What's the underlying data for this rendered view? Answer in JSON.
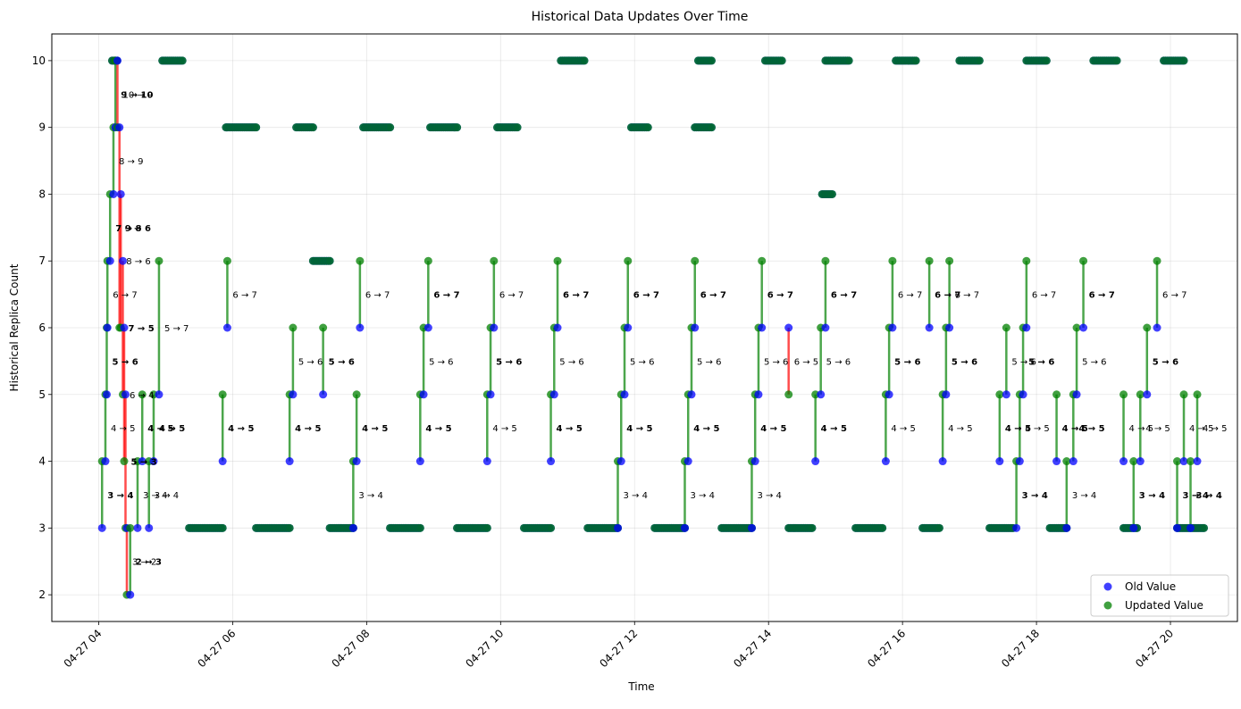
{
  "chart_data": {
    "type": "scatter",
    "title": "Historical Data Updates Over Time",
    "xlabel": "Time",
    "ylabel": "Historical Replica Count",
    "x_unit": "hours (clock time on 04-27)",
    "xlim": [
      3.3,
      21.0
    ],
    "ylim": [
      1.6,
      10.4
    ],
    "x_ticks": [
      {
        "value": 4,
        "label": "04-27 04"
      },
      {
        "value": 6,
        "label": "04-27 06"
      },
      {
        "value": 8,
        "label": "04-27 08"
      },
      {
        "value": 10,
        "label": "04-27 10"
      },
      {
        "value": 12,
        "label": "04-27 12"
      },
      {
        "value": 14,
        "label": "04-27 14"
      },
      {
        "value": 16,
        "label": "04-27 16"
      },
      {
        "value": 18,
        "label": "04-27 18"
      },
      {
        "value": 20,
        "label": "04-27 20"
      }
    ],
    "y_ticks": [
      {
        "value": 2,
        "label": "2"
      },
      {
        "value": 3,
        "label": "3"
      },
      {
        "value": 4,
        "label": "4"
      },
      {
        "value": 5,
        "label": "5"
      },
      {
        "value": 6,
        "label": "6"
      },
      {
        "value": 7,
        "label": "7"
      },
      {
        "value": 8,
        "label": "8"
      },
      {
        "value": 9,
        "label": "9"
      },
      {
        "value": 10,
        "label": "10"
      }
    ],
    "grid": true,
    "legend": {
      "placement": "lower-right",
      "entries": [
        {
          "label": "Old Value",
          "color": "#0000ff"
        },
        {
          "label": "Updated Value",
          "color": "#008000"
        }
      ]
    },
    "colors": {
      "old": "#0000ff",
      "new": "#008000",
      "decrease_line": "#ff0000",
      "increase_line": "#008000"
    },
    "updates": [
      {
        "t": 4.05,
        "from": 3,
        "to": 4,
        "label": "3 → 4"
      },
      {
        "t": 4.1,
        "from": 4,
        "to": 5,
        "label": "4 → 5"
      },
      {
        "t": 4.12,
        "from": 5,
        "to": 6,
        "label": "5 → 6"
      },
      {
        "t": 4.13,
        "from": 6,
        "to": 7,
        "label": "6 → 7"
      },
      {
        "t": 4.17,
        "from": 7,
        "to": 8,
        "label": "7 → 8"
      },
      {
        "t": 4.22,
        "from": 8,
        "to": 9,
        "label": "8 → 9"
      },
      {
        "t": 4.25,
        "from": 9,
        "to": 10,
        "label": "9 → 10"
      },
      {
        "t": 4.28,
        "from": 10,
        "to": 9,
        "label": "10 → 9"
      },
      {
        "t": 4.31,
        "from": 9,
        "to": 6,
        "label": "9 → 6"
      },
      {
        "t": 4.33,
        "from": 8,
        "to": 6,
        "label": "8 → 6"
      },
      {
        "t": 4.36,
        "from": 7,
        "to": 5,
        "label": "7 → 5"
      },
      {
        "t": 4.38,
        "from": 6,
        "to": 4,
        "label": "6 → 4"
      },
      {
        "t": 4.4,
        "from": 5,
        "to": 3,
        "label": "5 → 3"
      },
      {
        "t": 4.42,
        "from": 3,
        "to": 2,
        "label": "3 → 2"
      },
      {
        "t": 4.47,
        "from": 2,
        "to": 3,
        "label": "2 → 3"
      },
      {
        "t": 4.58,
        "from": 3,
        "to": 4,
        "label": "3 → 4"
      },
      {
        "t": 4.65,
        "from": 4,
        "to": 5,
        "label": "4 → 5"
      },
      {
        "t": 4.75,
        "from": 3,
        "to": 4,
        "label": "3 → 4"
      },
      {
        "t": 4.82,
        "from": 4,
        "to": 5,
        "label": "4 → 5"
      },
      {
        "t": 4.9,
        "from": 5,
        "to": 7,
        "label": "5 → 7"
      },
      {
        "t": 5.85,
        "from": 4,
        "to": 5,
        "label": "4 → 5"
      },
      {
        "t": 5.92,
        "from": 6,
        "to": 7,
        "label": "6 → 7"
      },
      {
        "t": 6.85,
        "from": 4,
        "to": 5,
        "label": "4 → 5"
      },
      {
        "t": 6.9,
        "from": 5,
        "to": 6,
        "label": "5 → 6"
      },
      {
        "t": 7.35,
        "from": 5,
        "to": 6,
        "label": "5 → 6"
      },
      {
        "t": 7.8,
        "from": 3,
        "to": 4,
        "label": "3 → 4"
      },
      {
        "t": 7.85,
        "from": 4,
        "to": 5,
        "label": "4 → 5"
      },
      {
        "t": 7.9,
        "from": 6,
        "to": 7,
        "label": "6 → 7"
      },
      {
        "t": 8.8,
        "from": 4,
        "to": 5,
        "label": "4 → 5"
      },
      {
        "t": 8.85,
        "from": 5,
        "to": 6,
        "label": "5 → 6"
      },
      {
        "t": 8.92,
        "from": 6,
        "to": 7,
        "label": "6 → 7"
      },
      {
        "t": 9.8,
        "from": 4,
        "to": 5,
        "label": "4 → 5"
      },
      {
        "t": 9.85,
        "from": 5,
        "to": 6,
        "label": "5 → 6"
      },
      {
        "t": 9.9,
        "from": 6,
        "to": 7,
        "label": "6 → 7"
      },
      {
        "t": 10.75,
        "from": 4,
        "to": 5,
        "label": "4 → 5"
      },
      {
        "t": 10.8,
        "from": 5,
        "to": 6,
        "label": "5 → 6"
      },
      {
        "t": 10.85,
        "from": 6,
        "to": 7,
        "label": "6 → 7"
      },
      {
        "t": 11.75,
        "from": 3,
        "to": 4,
        "label": "3 → 4"
      },
      {
        "t": 11.8,
        "from": 4,
        "to": 5,
        "label": "4 → 5"
      },
      {
        "t": 11.85,
        "from": 5,
        "to": 6,
        "label": "5 → 6"
      },
      {
        "t": 11.9,
        "from": 6,
        "to": 7,
        "label": "6 → 7"
      },
      {
        "t": 12.75,
        "from": 3,
        "to": 4,
        "label": "3 → 4"
      },
      {
        "t": 12.8,
        "from": 4,
        "to": 5,
        "label": "4 → 5"
      },
      {
        "t": 12.85,
        "from": 5,
        "to": 6,
        "label": "5 → 6"
      },
      {
        "t": 12.9,
        "from": 6,
        "to": 7,
        "label": "6 → 7"
      },
      {
        "t": 13.75,
        "from": 3,
        "to": 4,
        "label": "3 → 4"
      },
      {
        "t": 13.8,
        "from": 4,
        "to": 5,
        "label": "4 → 5"
      },
      {
        "t": 13.85,
        "from": 5,
        "to": 6,
        "label": "5 → 6"
      },
      {
        "t": 13.9,
        "from": 6,
        "to": 7,
        "label": "6 → 7"
      },
      {
        "t": 14.3,
        "from": 6,
        "to": 5,
        "label": "6 → 5"
      },
      {
        "t": 14.7,
        "from": 4,
        "to": 5,
        "label": "4 → 5"
      },
      {
        "t": 14.78,
        "from": 5,
        "to": 6,
        "label": "5 → 6"
      },
      {
        "t": 14.85,
        "from": 6,
        "to": 7,
        "label": "6 → 7"
      },
      {
        "t": 15.75,
        "from": 4,
        "to": 5,
        "label": "4 → 5"
      },
      {
        "t": 15.8,
        "from": 5,
        "to": 6,
        "label": "5 → 6"
      },
      {
        "t": 15.85,
        "from": 6,
        "to": 7,
        "label": "6 → 7"
      },
      {
        "t": 16.4,
        "from": 6,
        "to": 7,
        "label": "6 → 7"
      },
      {
        "t": 16.6,
        "from": 4,
        "to": 5,
        "label": "4 → 5"
      },
      {
        "t": 16.65,
        "from": 5,
        "to": 6,
        "label": "5 → 6"
      },
      {
        "t": 16.7,
        "from": 6,
        "to": 7,
        "label": "6 → 7"
      },
      {
        "t": 17.45,
        "from": 4,
        "to": 5,
        "label": "4 → 5"
      },
      {
        "t": 17.55,
        "from": 5,
        "to": 6,
        "label": "5 → 6"
      },
      {
        "t": 17.7,
        "from": 3,
        "to": 4,
        "label": "3 → 4"
      },
      {
        "t": 17.75,
        "from": 4,
        "to": 5,
        "label": "4 → 5"
      },
      {
        "t": 17.8,
        "from": 5,
        "to": 6,
        "label": "5 → 6"
      },
      {
        "t": 17.85,
        "from": 6,
        "to": 7,
        "label": "6 → 7"
      },
      {
        "t": 18.3,
        "from": 4,
        "to": 5,
        "label": "4 → 5"
      },
      {
        "t": 18.45,
        "from": 3,
        "to": 4,
        "label": "3 → 4"
      },
      {
        "t": 18.55,
        "from": 4,
        "to": 5,
        "label": "4 → 5"
      },
      {
        "t": 18.6,
        "from": 5,
        "to": 6,
        "label": "5 → 6"
      },
      {
        "t": 18.7,
        "from": 6,
        "to": 7,
        "label": "6 → 7"
      },
      {
        "t": 19.3,
        "from": 4,
        "to": 5,
        "label": "4 → 5"
      },
      {
        "t": 19.45,
        "from": 3,
        "to": 4,
        "label": "3 → 4"
      },
      {
        "t": 19.55,
        "from": 4,
        "to": 5,
        "label": "4 → 5"
      },
      {
        "t": 19.65,
        "from": 5,
        "to": 6,
        "label": "5 → 6"
      },
      {
        "t": 19.8,
        "from": 6,
        "to": 7,
        "label": "6 → 7"
      },
      {
        "t": 20.1,
        "from": 3,
        "to": 4,
        "label": "3 → 4"
      },
      {
        "t": 20.2,
        "from": 4,
        "to": 5,
        "label": "4 → 5"
      },
      {
        "t": 20.3,
        "from": 3,
        "to": 4,
        "label": "3 → 4"
      },
      {
        "t": 20.4,
        "from": 4,
        "to": 5,
        "label": "4 → 5"
      }
    ],
    "plateaus": [
      {
        "y": 10,
        "x0": 4.2,
        "x1": 4.28
      },
      {
        "y": 10,
        "x0": 4.95,
        "x1": 5.25
      },
      {
        "y": 3,
        "x0": 5.35,
        "x1": 5.85
      },
      {
        "y": 9,
        "x0": 5.9,
        "x1": 6.35
      },
      {
        "y": 3,
        "x0": 6.35,
        "x1": 6.85
      },
      {
        "y": 9,
        "x0": 6.95,
        "x1": 7.2
      },
      {
        "y": 7,
        "x0": 7.2,
        "x1": 7.45
      },
      {
        "y": 3,
        "x0": 7.45,
        "x1": 7.8
      },
      {
        "y": 9,
        "x0": 7.95,
        "x1": 8.35
      },
      {
        "y": 3,
        "x0": 8.35,
        "x1": 8.8
      },
      {
        "y": 9,
        "x0": 8.95,
        "x1": 9.35
      },
      {
        "y": 3,
        "x0": 9.35,
        "x1": 9.8
      },
      {
        "y": 9,
        "x0": 9.95,
        "x1": 10.25
      },
      {
        "y": 3,
        "x0": 10.35,
        "x1": 10.75
      },
      {
        "y": 10,
        "x0": 10.9,
        "x1": 11.25
      },
      {
        "y": 3,
        "x0": 11.3,
        "x1": 11.75
      },
      {
        "y": 9,
        "x0": 11.95,
        "x1": 12.2
      },
      {
        "y": 3,
        "x0": 12.3,
        "x1": 12.75
      },
      {
        "y": 10,
        "x0": 12.95,
        "x1": 13.15
      },
      {
        "y": 9,
        "x0": 12.9,
        "x1": 13.15
      },
      {
        "y": 3,
        "x0": 13.3,
        "x1": 13.75
      },
      {
        "y": 10,
        "x0": 13.95,
        "x1": 14.2
      },
      {
        "y": 3,
        "x0": 14.3,
        "x1": 14.65
      },
      {
        "y": 10,
        "x0": 14.85,
        "x1": 15.2
      },
      {
        "y": 8,
        "x0": 14.8,
        "x1": 14.95
      },
      {
        "y": 3,
        "x0": 15.3,
        "x1": 15.7
      },
      {
        "y": 10,
        "x0": 15.9,
        "x1": 16.2
      },
      {
        "y": 3,
        "x0": 16.3,
        "x1": 16.55
      },
      {
        "y": 10,
        "x0": 16.85,
        "x1": 17.15
      },
      {
        "y": 3,
        "x0": 17.3,
        "x1": 17.65
      },
      {
        "y": 10,
        "x0": 17.85,
        "x1": 18.15
      },
      {
        "y": 3,
        "x0": 18.2,
        "x1": 18.45
      },
      {
        "y": 10,
        "x0": 18.85,
        "x1": 19.2
      },
      {
        "y": 3,
        "x0": 19.3,
        "x1": 19.5
      },
      {
        "y": 10,
        "x0": 19.9,
        "x1": 20.2
      },
      {
        "y": 3,
        "x0": 20.1,
        "x1": 20.5
      }
    ]
  }
}
